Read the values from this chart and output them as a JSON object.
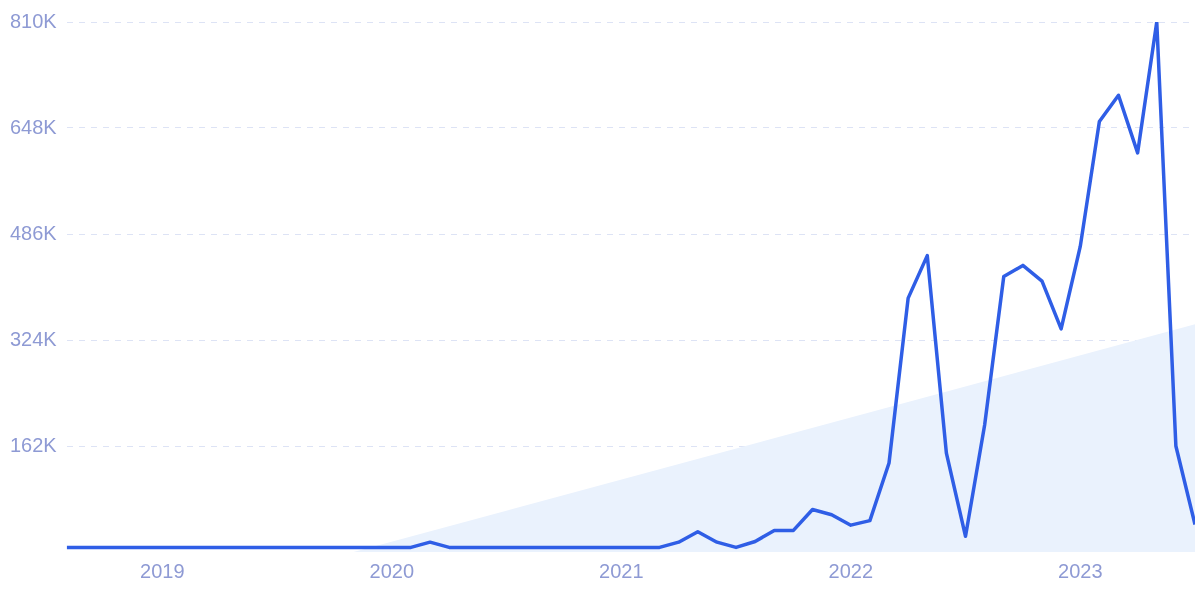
{
  "chart_data": {
    "type": "line",
    "x": [
      "2018-08",
      "2018-09",
      "2018-10",
      "2018-11",
      "2018-12",
      "2019-01",
      "2019-02",
      "2019-03",
      "2019-04",
      "2019-05",
      "2019-06",
      "2019-07",
      "2019-08",
      "2019-09",
      "2019-10",
      "2019-11",
      "2019-12",
      "2020-01",
      "2020-02",
      "2020-03",
      "2020-04",
      "2020-05",
      "2020-06",
      "2020-07",
      "2020-08",
      "2020-09",
      "2020-10",
      "2020-11",
      "2020-12",
      "2021-01",
      "2021-02",
      "2021-03",
      "2021-04",
      "2021-05",
      "2021-06",
      "2021-07",
      "2021-08",
      "2021-09",
      "2021-10",
      "2021-11",
      "2021-12",
      "2022-01",
      "2022-02",
      "2022-03",
      "2022-04",
      "2022-05",
      "2022-06",
      "2022-07",
      "2022-08",
      "2022-09",
      "2022-10",
      "2022-11",
      "2022-12",
      "2023-01",
      "2023-02",
      "2023-03",
      "2023-04",
      "2023-05",
      "2023-06",
      "2023-07"
    ],
    "series": [
      {
        "color": "#2f5ee6",
        "values": [
          7000,
          7000,
          7000,
          7000,
          7000,
          7000,
          7000,
          7000,
          7000,
          7000,
          7000,
          7000,
          7000,
          7000,
          7000,
          7000,
          7000,
          7000,
          7000,
          15000,
          7000,
          7000,
          7000,
          7000,
          7000,
          7000,
          7000,
          7000,
          7000,
          7000,
          7000,
          7000,
          15000,
          31000,
          15000,
          7000,
          16000,
          33000,
          33000,
          65000,
          57000,
          41000,
          48000,
          136000,
          388000,
          453000,
          151000,
          24000,
          194000,
          421000,
          438000,
          414000,
          341000,
          467000,
          658000,
          698000,
          610000,
          810000,
          162000,
          42000
        ]
      },
      {
        "type": "area",
        "color": "#eaf2fd",
        "x": [
          "2019-11",
          "2023-07"
        ],
        "values": [
          0,
          348000
        ]
      }
    ],
    "xlim": [
      "2018-08",
      "2023-07"
    ],
    "xticks": [
      "2019",
      "2020",
      "2021",
      "2022",
      "2023"
    ],
    "ylim": [
      0,
      810000
    ],
    "yticks": [
      {
        "value": 162000,
        "label": "162K"
      },
      {
        "value": 324000,
        "label": "324K"
      },
      {
        "value": 486000,
        "label": "486K"
      },
      {
        "value": 648000,
        "label": "648K"
      },
      {
        "value": 810000,
        "label": "810K"
      }
    ],
    "grid": "y",
    "legend": false,
    "marker": "none",
    "line_style": "solid"
  }
}
